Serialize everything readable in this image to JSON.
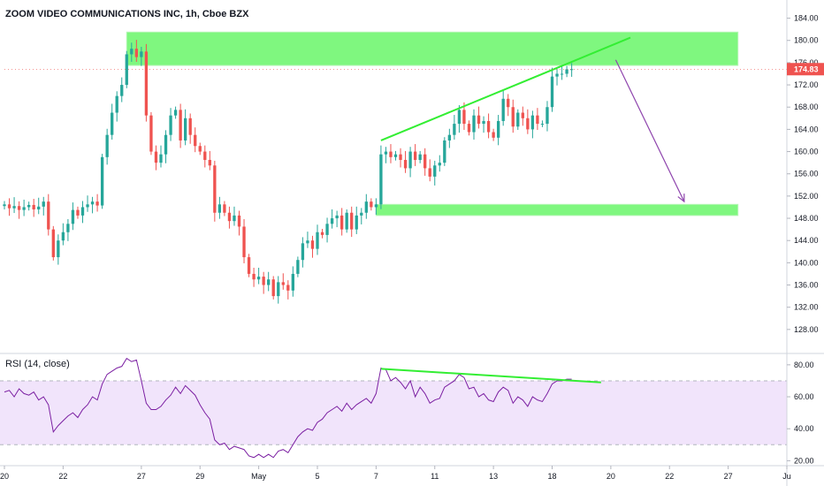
{
  "chart_data": [
    {
      "type": "candlestick",
      "title": "ZOOM VIDEO COMMUNICATIONS INC, 1h, Cboe BZX",
      "ylim": [
        124,
        186
      ],
      "yticks": [
        128,
        132,
        136,
        140,
        144,
        148,
        152,
        156,
        160,
        164,
        168,
        172,
        176,
        180,
        184
      ],
      "ytick_labels": [
        "128.00",
        "132.00",
        "136.00",
        "140.00",
        "144.00",
        "148.00",
        "152.00",
        "156.00",
        "160.00",
        "164.00",
        "168.00",
        "172.00",
        "176.00",
        "180.00",
        "184.00"
      ],
      "last_price": 174.83,
      "last_price_label": "174.83",
      "x_labels": [
        "20",
        "22",
        "27",
        "29",
        "May",
        "5",
        "7",
        "11",
        "13",
        "18",
        "20",
        "22",
        "27",
        "Ju"
      ],
      "x_label_index": [
        0,
        12,
        28,
        40,
        52,
        64,
        76,
        88,
        100,
        112,
        124,
        136,
        148,
        160
      ],
      "closes": [
        150.5,
        149.8,
        150.2,
        149.5,
        150.0,
        150.4,
        149.6,
        150.1,
        151.0,
        146.0,
        141.0,
        144.0,
        145.5,
        147.0,
        149.5,
        148.5,
        150.0,
        150.5,
        151.0,
        150.3,
        159.0,
        163.0,
        167.0,
        170.0,
        172.0,
        177.5,
        178.5,
        177.0,
        178.0,
        166.5,
        160.0,
        158.0,
        159.5,
        163.0,
        166.5,
        167.5,
        162.0,
        166.0,
        163.0,
        161.0,
        160.0,
        158.5,
        157.5,
        149.0,
        150.5,
        149.0,
        147.5,
        148.5,
        146.5,
        141.0,
        138.0,
        137.0,
        137.5,
        136.0,
        137.0,
        134.0,
        136.5,
        136.0,
        135.0,
        138.0,
        140.5,
        143.5,
        144.0,
        142.5,
        145.5,
        145.0,
        147.0,
        148.0,
        148.5,
        146.0,
        149.0,
        146.0,
        148.5,
        149.0,
        151.0,
        150.0,
        150.5,
        159.5,
        160.0,
        159.0,
        159.5,
        158.5,
        157.0,
        160.0,
        158.5,
        159.5,
        157.0,
        155.5,
        157.5,
        158.0,
        162.0,
        163.0,
        165.0,
        167.5,
        165.0,
        163.5,
        166.5,
        165.0,
        165.5,
        163.5,
        162.5,
        165.5,
        169.5,
        168.0,
        164.5,
        167.0,
        166.0,
        164.0,
        166.5,
        165.0,
        165.0,
        168.0,
        173.5,
        174.0,
        174.0,
        174.8,
        174.83
      ],
      "zones": [
        {
          "from_index": 25,
          "to_index": 150,
          "low": 175.5,
          "high": 181.5,
          "color": "#7ff77f"
        },
        {
          "from_index": 76,
          "to_index": 150,
          "low": 148.5,
          "high": 150.5,
          "color": "#7ff77f"
        }
      ],
      "trend_line": {
        "from_index": 77,
        "from_value": 162.0,
        "to_index": 128,
        "to_value": 180.5,
        "color": "#33ee33"
      },
      "arrow": {
        "from_index": 125,
        "from_value": 176.5,
        "to_index": 139,
        "to_value": 151.0,
        "color": "#8e44ad"
      },
      "colors": {
        "up": "#26a69a",
        "down": "#ef5350",
        "price_badge": "#ef5350"
      }
    },
    {
      "type": "line",
      "title": "RSI (14, close)",
      "ylim": [
        18,
        86
      ],
      "yticks": [
        20,
        40,
        60,
        80
      ],
      "ytick_labels": [
        "20.00",
        "40.00",
        "60.00",
        "80.00"
      ],
      "band": {
        "low": 30,
        "high": 70,
        "color": "#f1e4fb"
      },
      "values": [
        63,
        64,
        60,
        65,
        62,
        61,
        63,
        58,
        60,
        55,
        38,
        42,
        45,
        48,
        50,
        47,
        52,
        55,
        60,
        58,
        68,
        74,
        76,
        78,
        79,
        84,
        82,
        83,
        70,
        56,
        52,
        52,
        54,
        58,
        61,
        66,
        62,
        67,
        64,
        61,
        55,
        50,
        46,
        33,
        30,
        31,
        27,
        29,
        28,
        27,
        23,
        22,
        24,
        22,
        24,
        22,
        26,
        27,
        25,
        30,
        35,
        38,
        40,
        39,
        44,
        46,
        50,
        52,
        54,
        51,
        56,
        52,
        55,
        57,
        59,
        56,
        62,
        78,
        77,
        70,
        72,
        69,
        65,
        70,
        60,
        66,
        62,
        56,
        58,
        59,
        66,
        68,
        70,
        74,
        72,
        65,
        66,
        60,
        62,
        58,
        57,
        63,
        66,
        64,
        56,
        60,
        58,
        54,
        60,
        58,
        57,
        62,
        68,
        70,
        70,
        71,
        71
      ],
      "divergence_line": {
        "from_index": 77,
        "from_value": 77.5,
        "to_index": 122,
        "to_value": 69.0,
        "color": "#33ee33"
      },
      "color": "#7b1fa2"
    }
  ]
}
